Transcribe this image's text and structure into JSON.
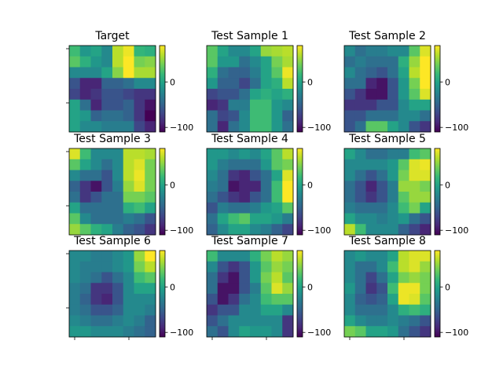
{
  "figure": {
    "background": "#ffffff"
  },
  "colormap": {
    "name": "viridis",
    "stops": [
      "#440154",
      "#482878",
      "#3e4989",
      "#31688e",
      "#26828e",
      "#1f9e89",
      "#35b779",
      "#6ece58",
      "#b5de2b",
      "#fde725"
    ]
  },
  "chart_data": [
    {
      "type": "heatmap",
      "title": "Target",
      "vmin": -110,
      "vmax": 80,
      "colorbar_ticks": [
        {
          "value": 0,
          "label": "0"
        },
        {
          "value": -100,
          "label": "−100"
        }
      ],
      "grid": [
        [
          20,
          -10,
          0,
          -20,
          60,
          75,
          15,
          10
        ],
        [
          30,
          10,
          -10,
          -20,
          60,
          80,
          40,
          45
        ],
        [
          -20,
          -20,
          -20,
          0,
          45,
          80,
          55,
          55
        ],
        [
          -60,
          -90,
          -90,
          -50,
          -50,
          -40,
          -20,
          -20
        ],
        [
          -70,
          -90,
          -80,
          -60,
          -60,
          -70,
          -80,
          -80
        ],
        [
          0,
          -40,
          -90,
          -60,
          -60,
          -50,
          -80,
          -100
        ],
        [
          0,
          -10,
          -50,
          -40,
          -40,
          -50,
          -80,
          -110
        ],
        [
          0,
          -20,
          -20,
          -30,
          -30,
          -30,
          -70,
          -90
        ]
      ]
    },
    {
      "type": "heatmap",
      "title": "Test Sample 1",
      "vmin": -110,
      "vmax": 80,
      "colorbar_ticks": [
        {
          "value": 0,
          "label": "0"
        },
        {
          "value": -100,
          "label": "−100"
        }
      ],
      "grid": [
        [
          30,
          0,
          -20,
          -20,
          0,
          50,
          55,
          60
        ],
        [
          30,
          -10,
          -10,
          -40,
          -20,
          0,
          40,
          55
        ],
        [
          10,
          -40,
          -50,
          -50,
          -30,
          0,
          30,
          75
        ],
        [
          -10,
          -50,
          -50,
          -70,
          -40,
          0,
          10,
          60
        ],
        [
          -70,
          -60,
          -60,
          -40,
          0,
          10,
          0,
          10
        ],
        [
          -90,
          -80,
          -30,
          -30,
          20,
          20,
          -10,
          -20
        ],
        [
          -40,
          -70,
          -60,
          -20,
          20,
          20,
          -10,
          -50
        ],
        [
          -40,
          -90,
          -40,
          -20,
          20,
          20,
          -10,
          -40
        ]
      ]
    },
    {
      "type": "heatmap",
      "title": "Test Sample 2",
      "vmin": -110,
      "vmax": 80,
      "colorbar_ticks": [
        {
          "value": 0,
          "label": "0"
        },
        {
          "value": -100,
          "label": "−100"
        }
      ],
      "grid": [
        [
          -20,
          -40,
          -30,
          -30,
          -20,
          -20,
          30,
          70
        ],
        [
          -40,
          -30,
          -40,
          -40,
          -40,
          10,
          50,
          80
        ],
        [
          -20,
          -40,
          -50,
          -60,
          -40,
          0,
          60,
          80
        ],
        [
          -40,
          -40,
          -90,
          -100,
          -60,
          -10,
          40,
          80
        ],
        [
          -60,
          -80,
          -100,
          -100,
          -60,
          -10,
          30,
          70
        ],
        [
          -80,
          -80,
          -80,
          -60,
          -60,
          -20,
          0,
          0
        ],
        [
          -60,
          -60,
          -40,
          -40,
          -40,
          -20,
          -20,
          -40
        ],
        [
          -60,
          -40,
          30,
          30,
          0,
          -20,
          -60,
          -80
        ]
      ]
    },
    {
      "type": "heatmap",
      "title": "Test Sample 3",
      "vmin": -110,
      "vmax": 80,
      "colorbar_ticks": [
        {
          "value": 0,
          "label": "0"
        },
        {
          "value": -100,
          "label": "−100"
        }
      ],
      "grid": [
        [
          70,
          20,
          -20,
          -20,
          -20,
          60,
          60,
          55
        ],
        [
          30,
          0,
          -20,
          -40,
          -20,
          60,
          70,
          40
        ],
        [
          -20,
          -40,
          -40,
          -60,
          -20,
          60,
          75,
          40
        ],
        [
          -50,
          -80,
          -100,
          -60,
          -30,
          50,
          70,
          40
        ],
        [
          -40,
          -80,
          -60,
          -40,
          -40,
          40,
          40,
          30
        ],
        [
          0,
          -40,
          -40,
          -40,
          -40,
          10,
          20,
          0
        ],
        [
          30,
          -20,
          -40,
          -40,
          -40,
          -30,
          -40,
          -60
        ],
        [
          50,
          30,
          10,
          0,
          -30,
          -50,
          -60,
          -80
        ]
      ]
    },
    {
      "type": "heatmap",
      "title": "Test Sample 4",
      "vmin": -110,
      "vmax": 80,
      "colorbar_ticks": [
        {
          "value": 0,
          "label": "0"
        },
        {
          "value": -100,
          "label": "−100"
        }
      ],
      "grid": [
        [
          -10,
          -10,
          -20,
          -10,
          -20,
          0,
          30,
          60
        ],
        [
          -10,
          -30,
          -40,
          -40,
          -40,
          -10,
          30,
          40
        ],
        [
          -20,
          -40,
          -80,
          -90,
          -60,
          -40,
          0,
          70
        ],
        [
          -30,
          -40,
          -100,
          -90,
          -90,
          -40,
          20,
          80
        ],
        [
          -40,
          -60,
          -80,
          -90,
          -60,
          -40,
          20,
          80
        ],
        [
          -60,
          -30,
          -40,
          -40,
          -30,
          -10,
          0,
          30
        ],
        [
          -40,
          0,
          20,
          30,
          0,
          0,
          -10,
          -30
        ],
        [
          -50,
          -20,
          0,
          0,
          -20,
          -30,
          -50,
          -70
        ]
      ]
    },
    {
      "type": "heatmap",
      "title": "Test Sample 5",
      "vmin": -110,
      "vmax": 80,
      "colorbar_ticks": [
        {
          "value": 0,
          "label": "0"
        },
        {
          "value": -100,
          "label": "−100"
        }
      ],
      "grid": [
        [
          0,
          -20,
          -40,
          -40,
          -30,
          -30,
          20,
          30
        ],
        [
          -20,
          -20,
          -20,
          -20,
          -10,
          30,
          70,
          75
        ],
        [
          -20,
          -40,
          -60,
          -40,
          -10,
          40,
          70,
          70
        ],
        [
          -40,
          -60,
          -90,
          -60,
          -30,
          50,
          50,
          40
        ],
        [
          -40,
          -60,
          -80,
          -60,
          -30,
          30,
          50,
          50
        ],
        [
          -30,
          -40,
          -40,
          -40,
          -20,
          20,
          40,
          0
        ],
        [
          0,
          -20,
          -20,
          -30,
          -20,
          -10,
          -40,
          -60
        ],
        [
          60,
          20,
          -20,
          -20,
          -20,
          -50,
          -70,
          -90
        ]
      ]
    },
    {
      "type": "heatmap",
      "title": "Test Sample 6",
      "vmin": -110,
      "vmax": 80,
      "colorbar_ticks": [
        {
          "value": 0,
          "label": "0"
        },
        {
          "value": -100,
          "label": "−100"
        }
      ],
      "grid": [
        [
          -20,
          -20,
          -30,
          -30,
          -20,
          -10,
          50,
          80
        ],
        [
          -20,
          -30,
          -30,
          -30,
          -20,
          -10,
          40,
          60
        ],
        [
          -20,
          -30,
          -40,
          -60,
          -40,
          -20,
          20,
          30
        ],
        [
          -30,
          -40,
          -80,
          -80,
          -60,
          -20,
          0,
          0
        ],
        [
          -30,
          -50,
          -80,
          -90,
          -60,
          -20,
          -20,
          -20
        ],
        [
          -30,
          -40,
          -60,
          -60,
          -50,
          -20,
          -20,
          -30
        ],
        [
          -20,
          -30,
          -40,
          -40,
          -30,
          -20,
          -30,
          -50
        ],
        [
          -10,
          -10,
          -20,
          -20,
          -20,
          -30,
          -40,
          -50
        ]
      ]
    },
    {
      "type": "heatmap",
      "title": "Test Sample 7",
      "vmin": -110,
      "vmax": 80,
      "colorbar_ticks": [
        {
          "value": 0,
          "label": "0"
        },
        {
          "value": -100,
          "label": "−100"
        }
      ],
      "grid": [
        [
          20,
          -20,
          -20,
          -20,
          10,
          40,
          60,
          50
        ],
        [
          -20,
          -60,
          -80,
          -60,
          -10,
          30,
          50,
          40
        ],
        [
          -40,
          -80,
          -100,
          -60,
          -10,
          40,
          60,
          30
        ],
        [
          -40,
          -100,
          -100,
          -60,
          -30,
          30,
          70,
          50
        ],
        [
          -60,
          -100,
          -80,
          -40,
          -20,
          20,
          30,
          30
        ],
        [
          -80,
          -60,
          -60,
          -20,
          -20,
          0,
          0,
          -20
        ],
        [
          -60,
          -40,
          -20,
          -20,
          -20,
          -20,
          -20,
          -80
        ],
        [
          -40,
          -60,
          -20,
          0,
          -10,
          -10,
          -20,
          -80
        ]
      ]
    },
    {
      "type": "heatmap",
      "title": "Test Sample 8",
      "vmin": -110,
      "vmax": 80,
      "colorbar_ticks": [
        {
          "value": 0,
          "label": "0"
        },
        {
          "value": -100,
          "label": "−100"
        }
      ],
      "grid": [
        [
          -20,
          -10,
          -20,
          -20,
          0,
          60,
          70,
          70
        ],
        [
          -20,
          -40,
          -40,
          -20,
          20,
          60,
          70,
          50
        ],
        [
          -20,
          -40,
          -70,
          -40,
          0,
          40,
          50,
          40
        ],
        [
          -10,
          -40,
          -80,
          -60,
          20,
          75,
          75,
          40
        ],
        [
          -20,
          -50,
          -60,
          -50,
          0,
          75,
          70,
          30
        ],
        [
          -20,
          -40,
          -40,
          -40,
          -20,
          10,
          20,
          10
        ],
        [
          0,
          -20,
          -30,
          -30,
          -20,
          -30,
          -40,
          -60
        ],
        [
          40,
          30,
          0,
          0,
          -10,
          -40,
          -60,
          -80
        ]
      ]
    }
  ]
}
